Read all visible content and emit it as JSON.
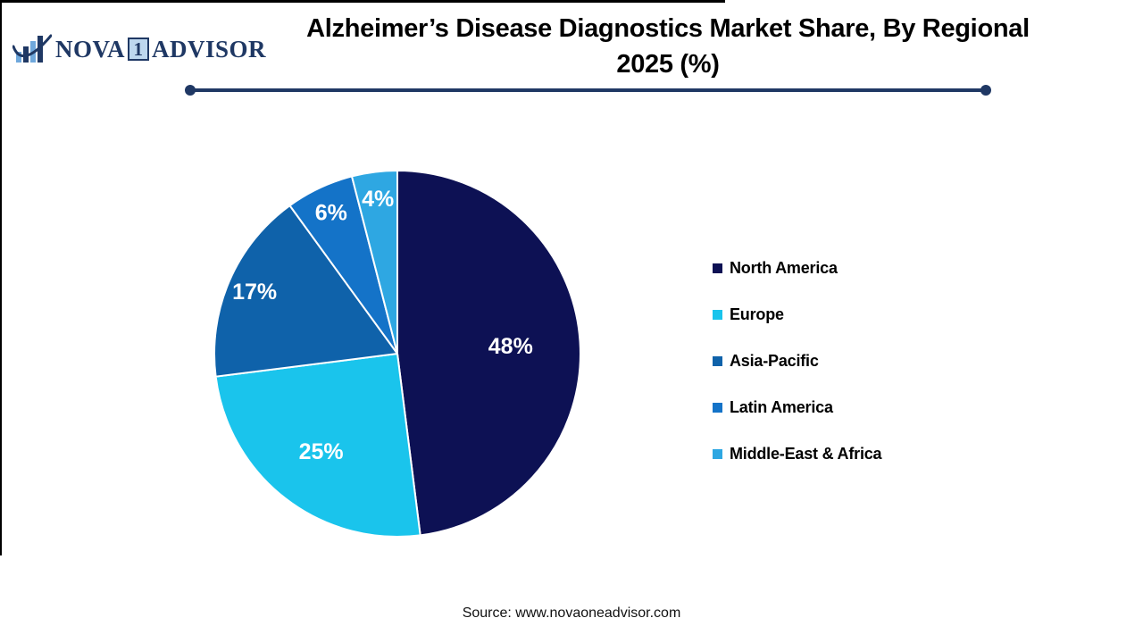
{
  "meta": {
    "background": "#ffffff",
    "frame_color": "#000000"
  },
  "logo": {
    "part1": "NOVA",
    "boxed": "1",
    "part2": "ADVISOR",
    "color": "#1f3864",
    "box_bg": "#bdd7ee",
    "icon": "bar-chart-swoosh-icon",
    "icon_bar_light": "#6fa8dc",
    "icon_bar_dark": "#1f3864"
  },
  "header": {
    "title_line1": "Alzheimer’s Disease Diagnostics Market Share, By Regional",
    "title_line2": "2025 (%)",
    "title_color": "#000000",
    "divider_color": "#1f3864"
  },
  "chart_data": {
    "type": "pie",
    "title": "Alzheimer’s Disease Diagnostics Market Share, By Regional 2025 (%)",
    "unit": "%",
    "start_angle_deg": 0,
    "direction": "clockwise",
    "slices": [
      {
        "label": "North America",
        "value": 48,
        "display": "48%",
        "color": "#0d1154"
      },
      {
        "label": "Europe",
        "value": 25,
        "display": "25%",
        "color": "#1ac4ec"
      },
      {
        "label": "Asia-Pacific",
        "value": 17,
        "display": "17%",
        "color": "#0f62aa"
      },
      {
        "label": "Latin America",
        "value": 6,
        "display": "6%",
        "color": "#1473c8"
      },
      {
        "label": "Middle-East & Africa",
        "value": 4,
        "display": "4%",
        "color": "#2ea7e2"
      }
    ],
    "slice_border_color": "#ffffff",
    "data_label_color": "#ffffff",
    "legend_position": "right",
    "legend_text_color": "#000000"
  },
  "footer": {
    "source": "Source: www.novaoneadvisor.com"
  }
}
